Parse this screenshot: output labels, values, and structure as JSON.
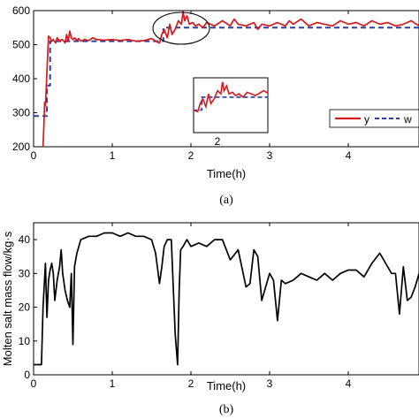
{
  "chart_data": [
    {
      "type": "line",
      "panel_label": "(a)",
      "xlabel": "Time(h)",
      "ylabel": "",
      "xlim": [
        0,
        4.95
      ],
      "ylim": [
        200,
        600
      ],
      "xticks": [
        "0",
        "1",
        "2",
        "3",
        "4"
      ],
      "yticks": [
        "200",
        "300",
        "400",
        "500",
        "600"
      ],
      "grid": false,
      "legend": {
        "placement": "right",
        "entries": [
          "y",
          "w"
        ]
      },
      "series": [
        {
          "name": "y",
          "color": "#d7191c",
          "style": "solid",
          "x": [
            0.12,
            0.13,
            0.14,
            0.15,
            0.17,
            0.19,
            0.21,
            0.23,
            0.25,
            0.28,
            0.3,
            0.33,
            0.36,
            0.38,
            0.4,
            0.42,
            0.44,
            0.46,
            0.48,
            0.5,
            0.52,
            0.55,
            0.57,
            0.6,
            0.65,
            0.7,
            0.75,
            0.8,
            0.9,
            1.0,
            1.1,
            1.2,
            1.3,
            1.4,
            1.5,
            1.55,
            1.6,
            1.63,
            1.66,
            1.7,
            1.73,
            1.76,
            1.8,
            1.84,
            1.88,
            1.9,
            1.92,
            1.95,
            1.98,
            2.02,
            2.06,
            2.1,
            2.15,
            2.2,
            2.3,
            2.4,
            2.5,
            2.55,
            2.6,
            2.7,
            2.8,
            2.85,
            2.9,
            3.0,
            3.1,
            3.2,
            3.25,
            3.3,
            3.4,
            3.5,
            3.6,
            3.7,
            3.8,
            3.9,
            4.0,
            4.1,
            4.2,
            4.3,
            4.4,
            4.5,
            4.6,
            4.7,
            4.8,
            4.9,
            4.95
          ],
          "y": [
            200,
            260,
            330,
            320,
            420,
            525,
            520,
            510,
            515,
            505,
            520,
            510,
            515,
            512,
            505,
            530,
            510,
            540,
            520,
            515,
            520,
            512,
            518,
            510,
            515,
            512,
            520,
            515,
            513,
            515,
            512,
            515,
            510,
            512,
            518,
            510,
            505,
            530,
            545,
            520,
            560,
            530,
            545,
            570,
            560,
            597,
            570,
            585,
            560,
            565,
            555,
            560,
            550,
            565,
            555,
            570,
            555,
            575,
            560,
            555,
            565,
            545,
            560,
            555,
            565,
            555,
            570,
            560,
            575,
            555,
            565,
            560,
            555,
            570,
            560,
            565,
            555,
            570,
            560,
            565,
            555,
            560,
            570,
            555,
            545
          ]
        },
        {
          "name": "w",
          "color": "#2c3ea0",
          "style": "dashed",
          "x": [
            0,
            0.17,
            0.17,
            0.21,
            0.21,
            1.65,
            1.65,
            4.95
          ],
          "y": [
            290,
            290,
            380,
            380,
            510,
            510,
            550,
            550
          ]
        }
      ],
      "annotations": [
        "2"
      ]
    },
    {
      "type": "line",
      "panel_label": "(b)",
      "xlabel": "Time(h)",
      "ylabel": "Molten salt mass flow/kg·s",
      "xlim": [
        0,
        4.95
      ],
      "ylim": [
        0,
        45
      ],
      "xticks": [
        "0",
        "1",
        "2",
        "3",
        "4"
      ],
      "yticks": [
        "0",
        "10",
        "20",
        "30",
        "40"
      ],
      "grid": false,
      "series": [
        {
          "color": "#000000",
          "x": [
            0,
            0.1,
            0.12,
            0.15,
            0.17,
            0.19,
            0.21,
            0.23,
            0.25,
            0.27,
            0.3,
            0.33,
            0.35,
            0.37,
            0.4,
            0.43,
            0.46,
            0.48,
            0.5,
            0.52,
            0.55,
            0.6,
            0.7,
            0.8,
            0.9,
            1.0,
            1.1,
            1.2,
            1.3,
            1.4,
            1.5,
            1.55,
            1.6,
            1.63,
            1.66,
            1.7,
            1.75,
            1.8,
            1.83,
            1.85,
            1.87,
            1.9,
            1.95,
            2.0,
            2.1,
            2.2,
            2.3,
            2.4,
            2.5,
            2.6,
            2.7,
            2.75,
            2.8,
            2.85,
            2.9,
            3.0,
            3.05,
            3.1,
            3.15,
            3.2,
            3.3,
            3.4,
            3.5,
            3.6,
            3.7,
            3.8,
            3.9,
            4.0,
            4.1,
            4.2,
            4.3,
            4.4,
            4.45,
            4.5,
            4.55,
            4.6,
            4.65,
            4.7,
            4.75,
            4.8,
            4.85,
            4.9,
            4.95
          ],
          "y": [
            3,
            3,
            20,
            33,
            17,
            28,
            31,
            33,
            30,
            22,
            28,
            32,
            37,
            30,
            25,
            22,
            20,
            30,
            9,
            32,
            36,
            40,
            41,
            41,
            42,
            42,
            41,
            42,
            41,
            41,
            40,
            36,
            27,
            32,
            38,
            40,
            40,
            12,
            3,
            25,
            37,
            38,
            40,
            38,
            39,
            38,
            40,
            40,
            34,
            37,
            26,
            27,
            37,
            35,
            22,
            30,
            28,
            16,
            28,
            27,
            28,
            30,
            29,
            28,
            30,
            28,
            30,
            31,
            31,
            29,
            33,
            36,
            34,
            32,
            30,
            30,
            18,
            32,
            22,
            23,
            26,
            30,
            30
          ]
        }
      ]
    }
  ]
}
